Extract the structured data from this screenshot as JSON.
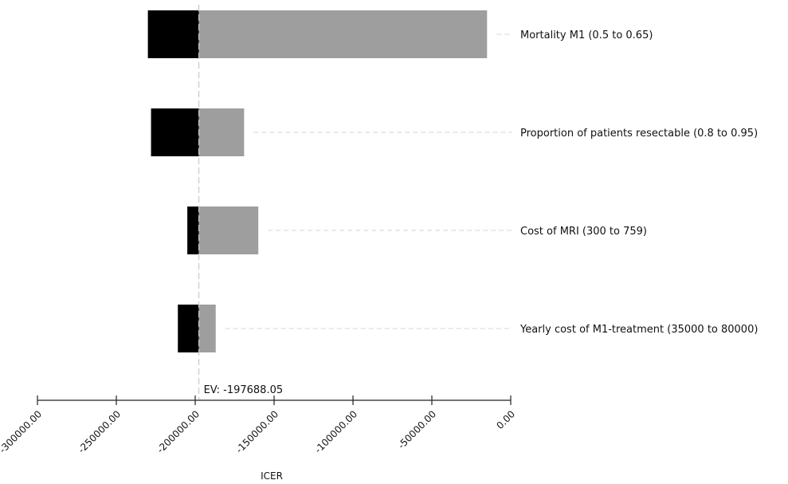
{
  "chart_data": {
    "type": "bar",
    "subtype": "tornado",
    "xlabel": "ICER",
    "xlim": [
      -300000,
      0
    ],
    "x_ticks": [
      -300000,
      -250000,
      -200000,
      -150000,
      -100000,
      -50000,
      0
    ],
    "x_tick_labels": [
      "-300000.00",
      "-250000.00",
      "-200000.00",
      "-150000.00",
      "-100000.00",
      "-50000.00",
      "0.00"
    ],
    "expected_value": -197688.05,
    "ev_label": "EV: -197688.05",
    "colors": {
      "low_bar": "#000000",
      "high_bar": "#9e9e9e",
      "ev_line": "#c8c8c8",
      "leader": "#d6d6d6"
    },
    "bars": [
      {
        "label": "Mortality M1 (0.5 to 0.65)",
        "low": -230000,
        "high": -15000
      },
      {
        "label": "Proportion of patients resectable (0.8 to 0.95)",
        "low": -228000,
        "high": -169000
      },
      {
        "label": "Cost of MRI (300 to 759)",
        "low": -205000,
        "high": -160000
      },
      {
        "label": "Yearly cost of M1-treatment (35000 to 80000)",
        "low": -211000,
        "high": -187000
      }
    ]
  }
}
